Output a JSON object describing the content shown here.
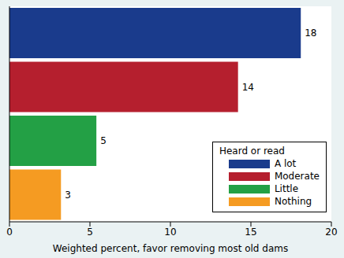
{
  "chart_data": {
    "type": "bar",
    "orientation": "horizontal",
    "categories": [
      "A lot",
      "Moderate",
      "Little",
      "Nothing"
    ],
    "values": [
      18.1,
      14.2,
      5.4,
      3.2
    ],
    "value_labels": [
      "18",
      "14",
      "5",
      "3"
    ],
    "data_labels": true,
    "colors": [
      "#1a3b8c",
      "#b51f2e",
      "#23a045",
      "#f59b22"
    ],
    "xlabel": "Weighted percent, favor removing most old dams",
    "xlim": [
      0,
      20
    ],
    "xticks": [
      0,
      5,
      10,
      15,
      20
    ],
    "grid": false,
    "legend": "lower right",
    "legend_title": "Heard or read",
    "tick_labels": "x"
  }
}
